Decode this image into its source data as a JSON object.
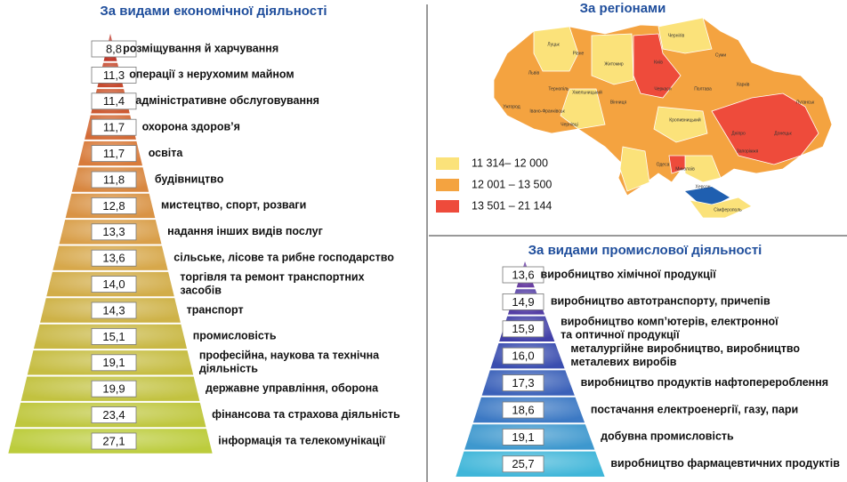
{
  "economic": {
    "title": "За видами економічної діяльності",
    "items": [
      {
        "value": "8,8",
        "label": [
          "розміщування й харчування"
        ]
      },
      {
        "value": "11,3",
        "label": [
          "операції з нерухомим майном"
        ]
      },
      {
        "value": "11,4",
        "label": [
          "адміністративне обслуговування"
        ]
      },
      {
        "value": "11,7",
        "label": [
          "охорона здоров’я"
        ]
      },
      {
        "value": "11,7",
        "label": [
          "освіта"
        ]
      },
      {
        "value": "11,8",
        "label": [
          "будівництво"
        ]
      },
      {
        "value": "12,8",
        "label": [
          "мистецтво, спорт, розваги"
        ]
      },
      {
        "value": "13,3",
        "label": [
          "надання інших видів послуг"
        ]
      },
      {
        "value": "13,6",
        "label": [
          "сільське, лісове та рибне господарство"
        ]
      },
      {
        "value": "14,0",
        "label": [
          "торгівля та ремонт транспортних",
          "засобів"
        ]
      },
      {
        "value": "14,3",
        "label": [
          "транспорт"
        ]
      },
      {
        "value": "15,1",
        "label": [
          "промисловість"
        ]
      },
      {
        "value": "19,1",
        "label": [
          "професійна, наукова та технічна",
          "діяльність"
        ]
      },
      {
        "value": "19,9",
        "label": [
          "державне управління, оборона"
        ]
      },
      {
        "value": "23,4",
        "label": [
          "фінансова та страхова діяльність"
        ]
      },
      {
        "value": "27,1",
        "label": [
          "інформація та телекомунікації"
        ]
      }
    ]
  },
  "regions": {
    "title": "За регіонами",
    "legend": [
      {
        "label": "11 314– 12 000",
        "color": "#fbe27a"
      },
      {
        "label": "12 001 – 13 500",
        "color": "#f4a340"
      },
      {
        "label": "13 501 – 21 144",
        "color": "#ee4b3b"
      }
    ],
    "cities": [
      "Луцьк",
      "Рівне",
      "Житомир",
      "Київ",
      "Чернігів",
      "Суми",
      "Львів",
      "Тернопіль",
      "Хмельницький",
      "Вінниця",
      "Черкаси",
      "Полтава",
      "Харків",
      "Луганськ",
      "Ужгород",
      "Івано-Франківськ",
      "Чернівці",
      "Кропивницький",
      "Дніпро",
      "Донецьк",
      "Запоріжжя",
      "Одеса",
      "Миколаїв",
      "Херсон",
      "Сімферополь"
    ]
  },
  "industrial": {
    "title": "За видами промислової діяльності",
    "items": [
      {
        "value": "13,6",
        "label": [
          "виробництво хімічної продукції"
        ]
      },
      {
        "value": "14,9",
        "label": [
          "виробництво  автотранспорту, причепів"
        ]
      },
      {
        "value": "15,9",
        "label": [
          "виробництво комп’ютерів,  електронної",
          "та оптичної продукції"
        ]
      },
      {
        "value": "16,0",
        "label": [
          "металургійне виробництво, виробництво",
          "металевих  виробів"
        ]
      },
      {
        "value": "17,3",
        "label": [
          "виробництво продуктів нафтоперероблення"
        ]
      },
      {
        "value": "18,6",
        "label": [
          "постачання електроенергії, газу, пари"
        ]
      },
      {
        "value": "19,1",
        "label": [
          "добувна промисловість"
        ]
      },
      {
        "value": "25,7",
        "label": [
          "виробництво фармацевтичних продуктів"
        ]
      }
    ]
  }
}
